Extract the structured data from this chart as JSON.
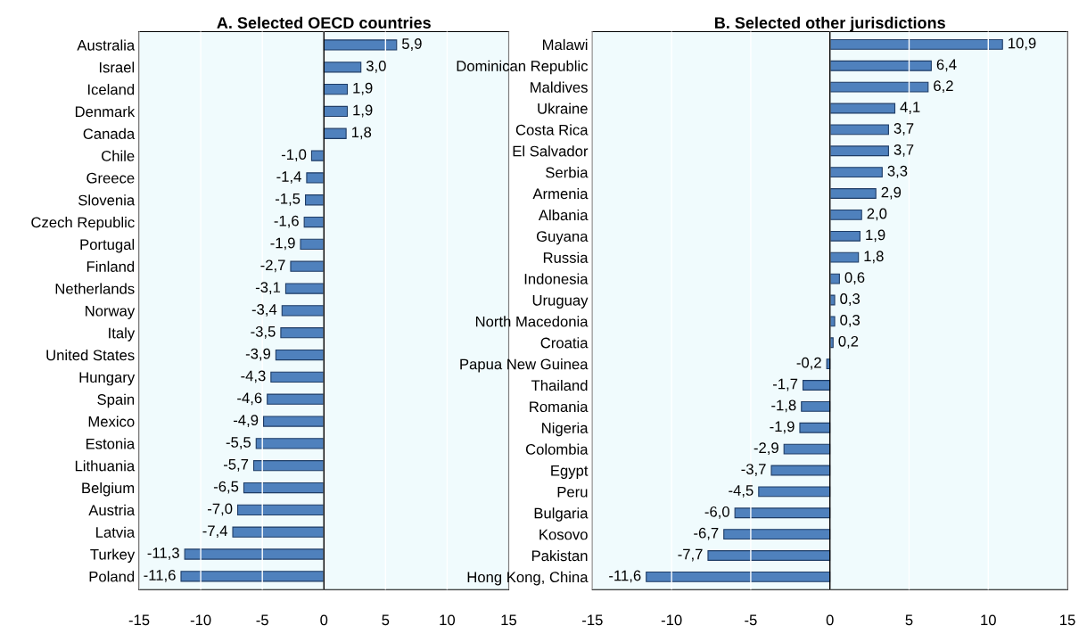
{
  "chart_data": [
    {
      "type": "bar",
      "orientation": "horizontal",
      "title": "A. Selected OECD countries",
      "categories": [
        "Australia",
        "Israel",
        "Iceland",
        "Denmark",
        "Canada",
        "Chile",
        "Greece",
        "Slovenia",
        "Czech Republic",
        "Portugal",
        "Finland",
        "Netherlands",
        "Norway",
        "Italy",
        "United States",
        "Hungary",
        "Spain",
        "Mexico",
        "Estonia",
        "Lithuania",
        "Belgium",
        "Austria",
        "Latvia",
        "Turkey",
        "Poland"
      ],
      "values": [
        5.9,
        3.0,
        1.9,
        1.9,
        1.8,
        -1.0,
        -1.4,
        -1.5,
        -1.6,
        -1.9,
        -2.7,
        -3.1,
        -3.4,
        -3.5,
        -3.9,
        -4.3,
        -4.6,
        -4.9,
        -5.5,
        -5.7,
        -6.5,
        -7.0,
        -7.4,
        -11.3,
        -11.6
      ],
      "value_labels": [
        "5,9",
        "3,0",
        "1,9",
        "1,9",
        "1,8",
        "-1,0",
        "-1,4",
        "-1,5",
        "-1,6",
        "-1,9",
        "-2,7",
        "-3,1",
        "-3,4",
        "-3,5",
        "-3,9",
        "-4,3",
        "-4,6",
        "-4,9",
        "-5,5",
        "-5,7",
        "-6,5",
        "-7,0",
        "-7,4",
        "-11,3",
        "-11,6"
      ],
      "color": "#4f81bd",
      "xlim": [
        -15,
        15
      ],
      "xticks": [
        -15,
        -10,
        -5,
        0,
        5,
        10,
        15
      ],
      "grid": "x",
      "legend": false,
      "ref_lines": [
        {
          "axis": "x",
          "value": 0,
          "color": "#000000"
        }
      ]
    },
    {
      "type": "bar",
      "orientation": "horizontal",
      "title": "B. Selected other jurisdictions",
      "categories": [
        "Malawi",
        "Dominican Republic",
        "Maldives",
        "Ukraine",
        "Costa Rica",
        "El Salvador",
        "Serbia",
        "Armenia",
        "Albania",
        "Guyana",
        "Russia",
        "Indonesia",
        "Uruguay",
        "North Macedonia",
        "Croatia",
        "Papua New Guinea",
        "Thailand",
        "Romania",
        "Nigeria",
        "Colombia",
        "Egypt",
        "Peru",
        "Bulgaria",
        "Kosovo",
        "Pakistan",
        "Hong Kong, China"
      ],
      "values": [
        10.9,
        6.4,
        6.2,
        4.1,
        3.7,
        3.7,
        3.3,
        2.9,
        2.0,
        1.9,
        1.8,
        0.6,
        0.3,
        0.3,
        0.2,
        -0.2,
        -1.7,
        -1.8,
        -1.9,
        -2.9,
        -3.7,
        -4.5,
        -6.0,
        -6.7,
        -7.7,
        -11.6
      ],
      "value_labels": [
        "10,9",
        "6,4",
        "6,2",
        "4,1",
        "3,7",
        "3,7",
        "3,3",
        "2,9",
        "2,0",
        "1,9",
        "1,8",
        "0,6",
        "0,3",
        "0,3",
        "0,2",
        "-0,2",
        "-1,7",
        "-1,8",
        "-1,9",
        "-2,9",
        "-3,7",
        "-4,5",
        "-6,0",
        "-6,7",
        "-7,7",
        "-11,6"
      ],
      "color": "#4f81bd",
      "xlim": [
        -15,
        15
      ],
      "xticks": [
        -15,
        -10,
        -5,
        0,
        5,
        10,
        15
      ],
      "grid": "x",
      "legend": false,
      "ref_lines": [
        {
          "axis": "x",
          "value": 0,
          "color": "#000000"
        }
      ]
    }
  ]
}
